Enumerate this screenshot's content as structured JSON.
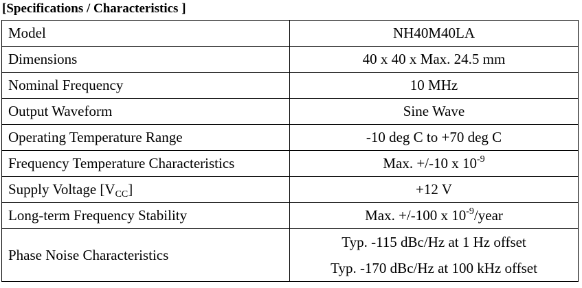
{
  "heading": "[Specifications / Characteristics ]",
  "rows": [
    {
      "label": "Model",
      "value": "NH40M40LA"
    },
    {
      "label": "Dimensions",
      "value": "40 x 40 x Max. 24.5 mm"
    },
    {
      "label": "Nominal Frequency",
      "value": "10 MHz"
    },
    {
      "label": "Output Waveform",
      "value": "Sine Wave"
    },
    {
      "label": "Operating Temperature Range",
      "value": "-10 deg C to +70 deg C"
    },
    {
      "label": "Frequency Temperature Characteristics",
      "value_prefix": "Max. +/-10 x 10",
      "value_exponent": "-9"
    },
    {
      "label_prefix": "Supply Voltage [V",
      "label_subscript": "CC",
      "label_suffix": "]",
      "value": "+12 V"
    },
    {
      "label": "Long-term Frequency Stability",
      "value_prefix": "Max. +/-100 x 10",
      "value_exponent": "-9",
      "value_suffix": "/year"
    },
    {
      "label": "Phase Noise Characteristics",
      "value_lines": [
        "Typ. -115 dBc/Hz at 1 Hz offset",
        "Typ. -170 dBc/Hz at 100 kHz offset"
      ]
    }
  ]
}
